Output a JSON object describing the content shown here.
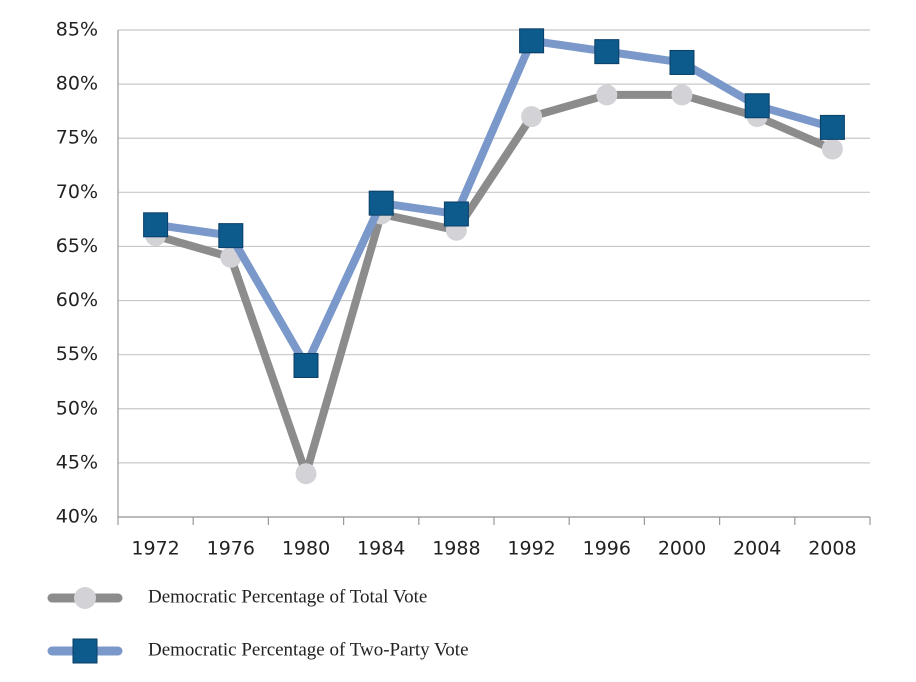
{
  "chart_data": {
    "type": "line",
    "categories": [
      "1972",
      "1976",
      "1980",
      "1984",
      "1988",
      "1992",
      "1996",
      "2000",
      "2004",
      "2008"
    ],
    "series": [
      {
        "name": "Democratic Percentage of Total Vote",
        "color": "#8c8c8c",
        "marker_color": "#d3d3d7",
        "marker": "circle",
        "values": [
          66,
          64,
          44,
          68,
          66.5,
          77,
          79,
          79,
          77,
          74
        ]
      },
      {
        "name": "Democratic Percentage of Two-Party Vote",
        "color": "#7a98c9",
        "marker_color": "#0d5a8c",
        "marker": "square",
        "values": [
          67,
          66,
          54,
          69,
          68,
          84,
          83,
          82,
          78,
          76
        ]
      }
    ],
    "ylim": [
      40,
      85
    ],
    "yticks": [
      {
        "value": 40,
        "label": "40%"
      },
      {
        "value": 45,
        "label": "45%"
      },
      {
        "value": 50,
        "label": "50%"
      },
      {
        "value": 55,
        "label": "55%"
      },
      {
        "value": 60,
        "label": "60%"
      },
      {
        "value": 65,
        "label": "65%"
      },
      {
        "value": 70,
        "label": "70%"
      },
      {
        "value": 75,
        "label": "75%"
      },
      {
        "value": 80,
        "label": "80%"
      },
      {
        "value": 85,
        "label": "85%"
      }
    ],
    "grid": true,
    "legend": "bottom"
  }
}
